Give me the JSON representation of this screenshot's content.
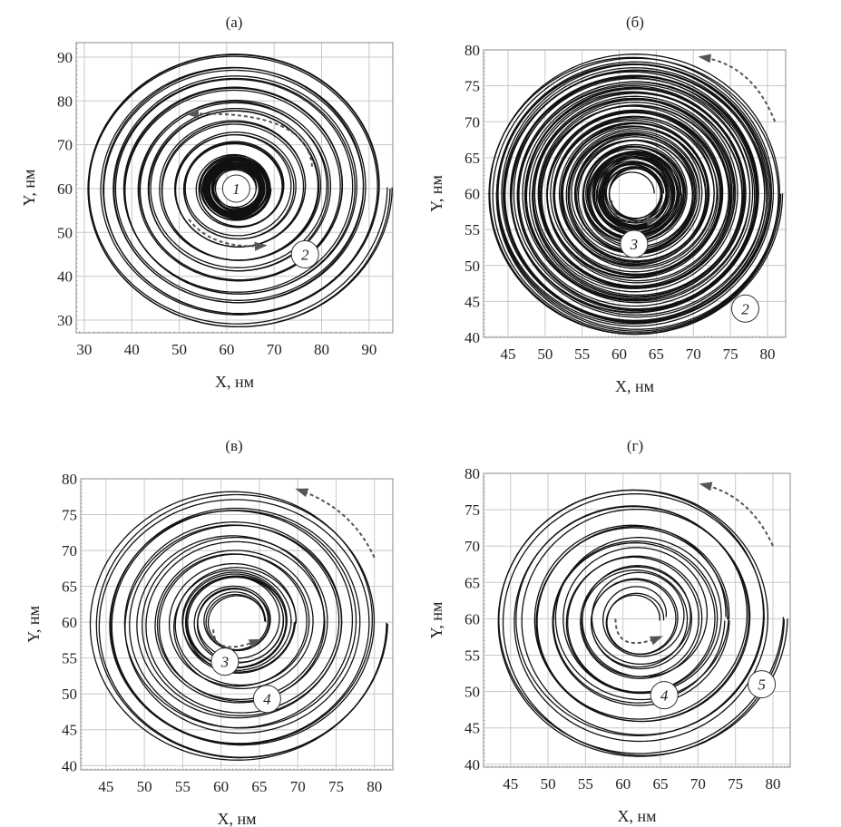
{
  "chart_data": [
    {
      "type": "line",
      "title": "(а)",
      "xlabel": "X, нм",
      "ylabel": "Y, нм",
      "xlim": [
        28.3,
        95
      ],
      "ylim": [
        27.1,
        93.3
      ],
      "xticks": [
        30,
        40,
        50,
        60,
        70,
        80,
        90
      ],
      "yticks": [
        30,
        40,
        50,
        60,
        70,
        80,
        90
      ],
      "grid": true,
      "series": [
        {
          "label": "1",
          "center": [
            62,
            60
          ],
          "r_start": 4.5,
          "r_end": 7,
          "turns": 12,
          "label_at": [
            62,
            60
          ]
        },
        {
          "label": "2",
          "center": [
            62,
            60
          ],
          "r_start": 7,
          "r_end": 32,
          "turns": 10,
          "label_at": [
            76.5,
            45
          ]
        }
      ]
    },
    {
      "type": "line",
      "title": "(б)",
      "xlabel": "X, нм",
      "ylabel": "Y, нм",
      "xlim": [
        41.7,
        82.45
      ],
      "ylim": [
        40,
        80
      ],
      "xticks": [
        45,
        50,
        55,
        60,
        65,
        70,
        75,
        80
      ],
      "yticks": [
        40,
        45,
        50,
        55,
        60,
        65,
        70,
        75,
        80
      ],
      "grid": true,
      "series": [
        {
          "label": "3",
          "center": [
            62,
            60
          ],
          "r_start": 3.5,
          "r_end": 6.2,
          "turns": 10,
          "label_at": [
            62,
            53
          ]
        },
        {
          "label": "2",
          "center": [
            62,
            60
          ],
          "r_start": 6.2,
          "r_end": 19.5,
          "turns": 22,
          "label_at": [
            77,
            44
          ]
        }
      ]
    },
    {
      "type": "line",
      "title": "(в)",
      "xlabel": "X, нм",
      "ylabel": "Y, нм",
      "xlim": [
        41.7,
        82.4
      ],
      "ylim": [
        39.4,
        80
      ],
      "xticks": [
        45,
        50,
        55,
        60,
        65,
        70,
        75,
        80
      ],
      "yticks": [
        40,
        45,
        50,
        55,
        60,
        65,
        70,
        75,
        80
      ],
      "grid": true,
      "series": [
        {
          "label": "3",
          "center": [
            62,
            60
          ],
          "r_start": 3.5,
          "r_end": 7.5,
          "turns": 4,
          "label_at": [
            60.5,
            54.5
          ]
        },
        {
          "label": "4",
          "center": [
            62,
            60
          ],
          "r_start": 7.5,
          "r_end": 19.5,
          "turns": 6,
          "label_at": [
            66,
            49.3
          ]
        }
      ]
    },
    {
      "type": "line",
      "title": "(г)",
      "xlabel": "X, нм",
      "ylabel": "Y, нм",
      "xlim": [
        41.4,
        82.3
      ],
      "ylim": [
        39.6,
        80
      ],
      "xticks": [
        45,
        50,
        55,
        60,
        65,
        70,
        75,
        80
      ],
      "yticks": [
        40,
        45,
        50,
        55,
        60,
        65,
        70,
        75,
        80
      ],
      "grid": true,
      "series": [
        {
          "label": "4",
          "center": [
            62,
            60
          ],
          "r_start": 3.5,
          "r_end": 12,
          "turns": 5,
          "label_at": [
            65.5,
            49.5
          ]
        },
        {
          "label": "5",
          "center": [
            62,
            60
          ],
          "r_start": 12,
          "r_end": 19.5,
          "turns": 3,
          "label_at": [
            78.5,
            51
          ]
        }
      ]
    }
  ],
  "colors": {
    "curve": "#111111",
    "grid": "#c8c8c8",
    "arrow": "#555555",
    "frame": "#888888"
  }
}
